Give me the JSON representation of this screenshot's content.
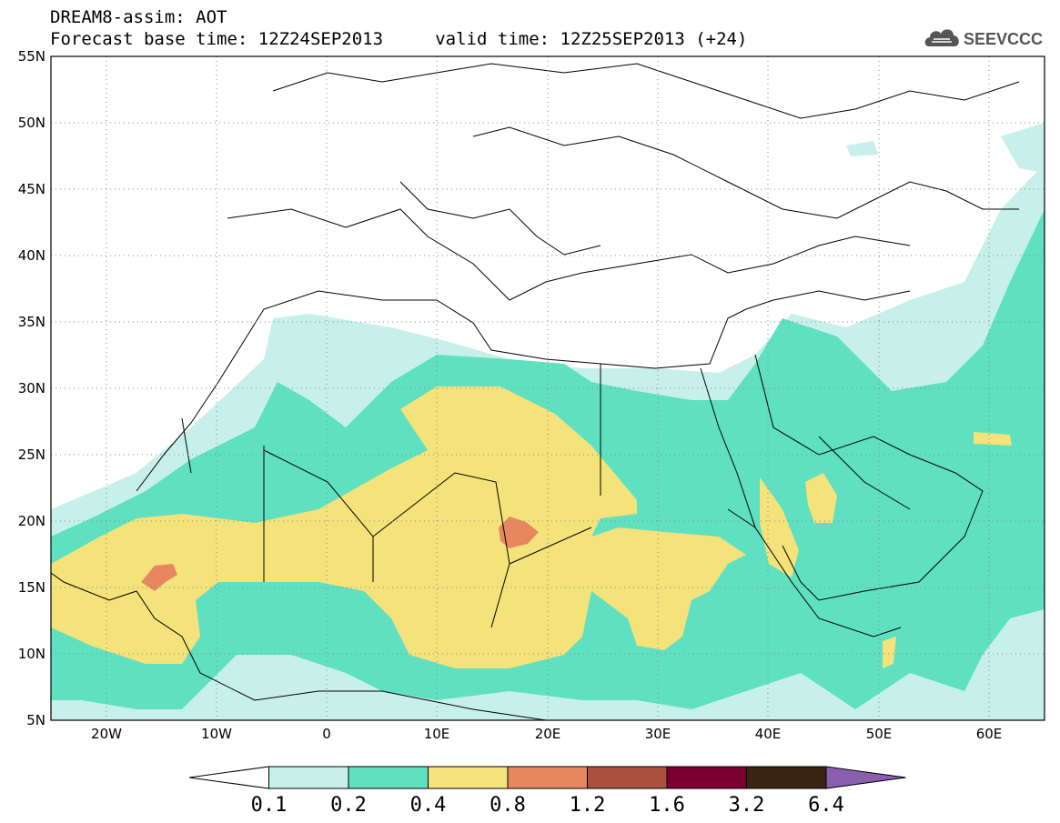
{
  "header": {
    "title_line1": "DREAM8-assim: AOT",
    "title_line2": "Forecast base time: 12Z24SEP2013     valid time: 12Z25SEP2013 (+24)",
    "logo_text": "SEEVCCC",
    "logo_icon": "cloud-icon"
  },
  "map": {
    "lat_labels": [
      "55N",
      "50N",
      "45N",
      "40N",
      "35N",
      "30N",
      "25N",
      "20N",
      "15N",
      "10N",
      "5N"
    ],
    "lon_labels": [
      "20W",
      "10W",
      "0",
      "10E",
      "20E",
      "30E",
      "40E",
      "50E",
      "60E"
    ],
    "lat_range": [
      5,
      55
    ],
    "lon_range": [
      -25,
      65
    ],
    "grid": "dotted"
  },
  "colorbar": {
    "labels": [
      "0.1",
      "0.2",
      "0.4",
      "0.8",
      "1.2",
      "1.6",
      "3.2",
      "6.4"
    ],
    "colors": [
      "#ffffff",
      "#c8f0ea",
      "#5fe0c0",
      "#f4e27a",
      "#e7875f",
      "#ad4f3e",
      "#7b0030",
      "#3c2414",
      "#8b5fb0"
    ]
  },
  "palette": {
    "c01": "#c8f0ea",
    "c02": "#5fe0c0",
    "c04": "#f4e27a",
    "c08": "#e7875f"
  }
}
